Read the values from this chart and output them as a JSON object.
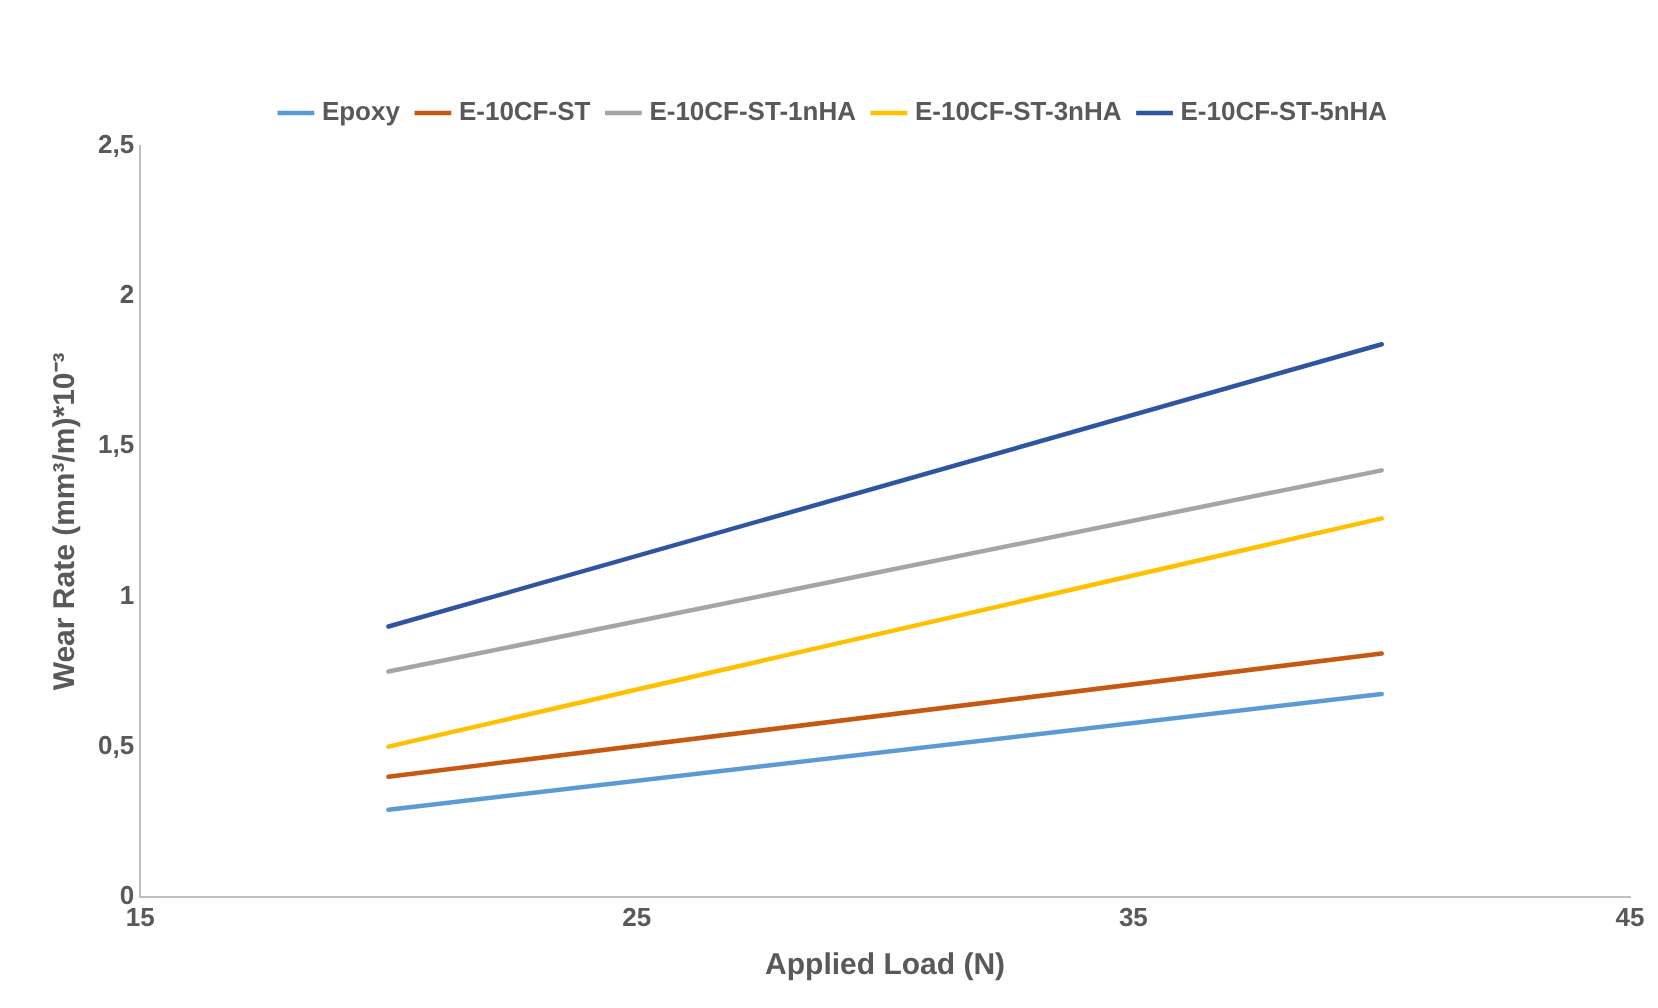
{
  "chart_data": {
    "type": "line",
    "xlabel": "Applied Load (N)",
    "ylabel": "Wear Rate (mm³/m)*10⁻³",
    "x": [
      20,
      40
    ],
    "series": [
      {
        "name": "Epoxy",
        "color": "#5b9bd5",
        "values": [
          0.29,
          0.675
        ]
      },
      {
        "name": "E-10CF-ST",
        "color": "#c65911",
        "values": [
          0.4,
          0.81
        ]
      },
      {
        "name": "E-10CF-ST-1nHA",
        "color": "#a5a5a5",
        "values": [
          0.75,
          1.42
        ]
      },
      {
        "name": "E-10CF-ST-3nHA",
        "color": "#ffc000",
        "values": [
          0.5,
          1.26
        ]
      },
      {
        "name": "E-10CF-ST-5nHA",
        "color": "#2f55a2",
        "values": [
          0.9,
          1.84
        ]
      }
    ],
    "xlim": [
      15,
      45
    ],
    "xticks": [
      15,
      25,
      35,
      45
    ],
    "ylim": [
      0,
      2.5
    ],
    "yticks": [
      0,
      {
        "value": 0.5,
        "label": "0,5"
      },
      1,
      {
        "value": 1.5,
        "label": "1,5"
      },
      2,
      {
        "value": 2.5,
        "label": "2,5"
      }
    ],
    "grid": false,
    "legend": "top",
    "marker": "none",
    "line_style": "solid"
  }
}
